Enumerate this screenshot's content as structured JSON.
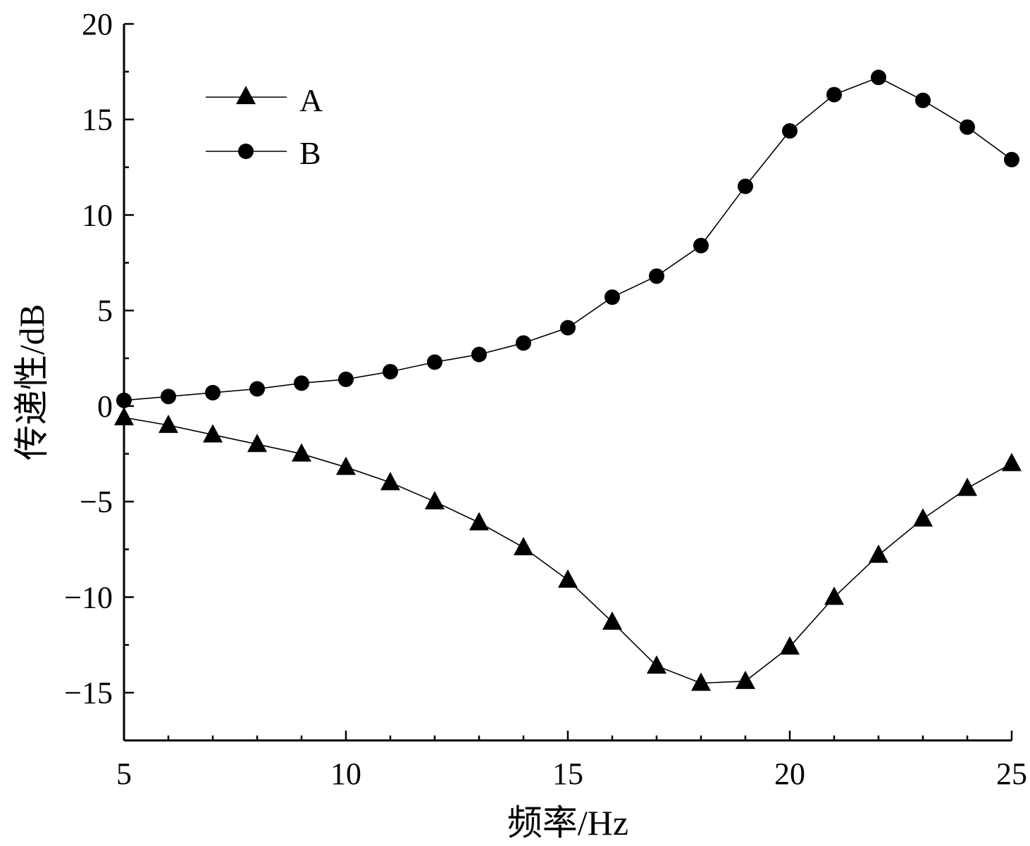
{
  "chart_data": {
    "type": "line",
    "xlabel": "频率/Hz",
    "ylabel": "传递性/dB",
    "xlim": [
      5,
      25
    ],
    "ylim": [
      -17.5,
      20
    ],
    "x_ticks": [
      5,
      10,
      15,
      20,
      25
    ],
    "y_ticks": [
      -15,
      -10,
      -5,
      0,
      5,
      10,
      15,
      20
    ],
    "x_tick_labels": [
      "5",
      "10",
      "15",
      "20",
      "25"
    ],
    "y_tick_labels": [
      "−15",
      "−10",
      "−5",
      "0",
      "5",
      "10",
      "15",
      "20"
    ],
    "grid": false,
    "legend_position": "top-left",
    "x": [
      5,
      6,
      7,
      8,
      9,
      10,
      11,
      12,
      13,
      14,
      15,
      16,
      17,
      18,
      19,
      20,
      21,
      22,
      23,
      24,
      25
    ],
    "series": [
      {
        "name": "A",
        "marker": "triangle",
        "color": "#000000",
        "values": [
          -0.6,
          -1.0,
          -1.5,
          -2.0,
          -2.5,
          -3.2,
          -4.0,
          -5.0,
          -6.1,
          -7.4,
          -9.1,
          -11.3,
          -13.6,
          -14.5,
          -14.4,
          -12.6,
          -10.0,
          -7.8,
          -5.9,
          -4.3,
          -3.0
        ]
      },
      {
        "name": "B",
        "marker": "circle",
        "color": "#000000",
        "values": [
          0.3,
          0.5,
          0.7,
          0.9,
          1.2,
          1.4,
          1.8,
          2.3,
          2.7,
          3.3,
          4.1,
          5.7,
          6.8,
          8.4,
          11.5,
          14.4,
          16.3,
          17.2,
          16.0,
          14.6,
          12.9
        ]
      }
    ]
  }
}
